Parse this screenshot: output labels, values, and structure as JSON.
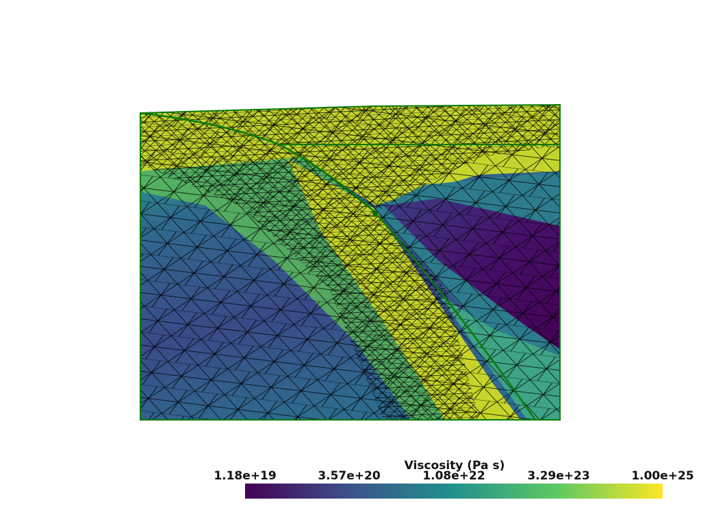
{
  "colorbar": {
    "title": "Viscosity (Pa s)",
    "labels": [
      "1.18e+19",
      "3.57e+20",
      "1.08e+22",
      "3.29e+23",
      "1.00e+25"
    ]
  }
}
